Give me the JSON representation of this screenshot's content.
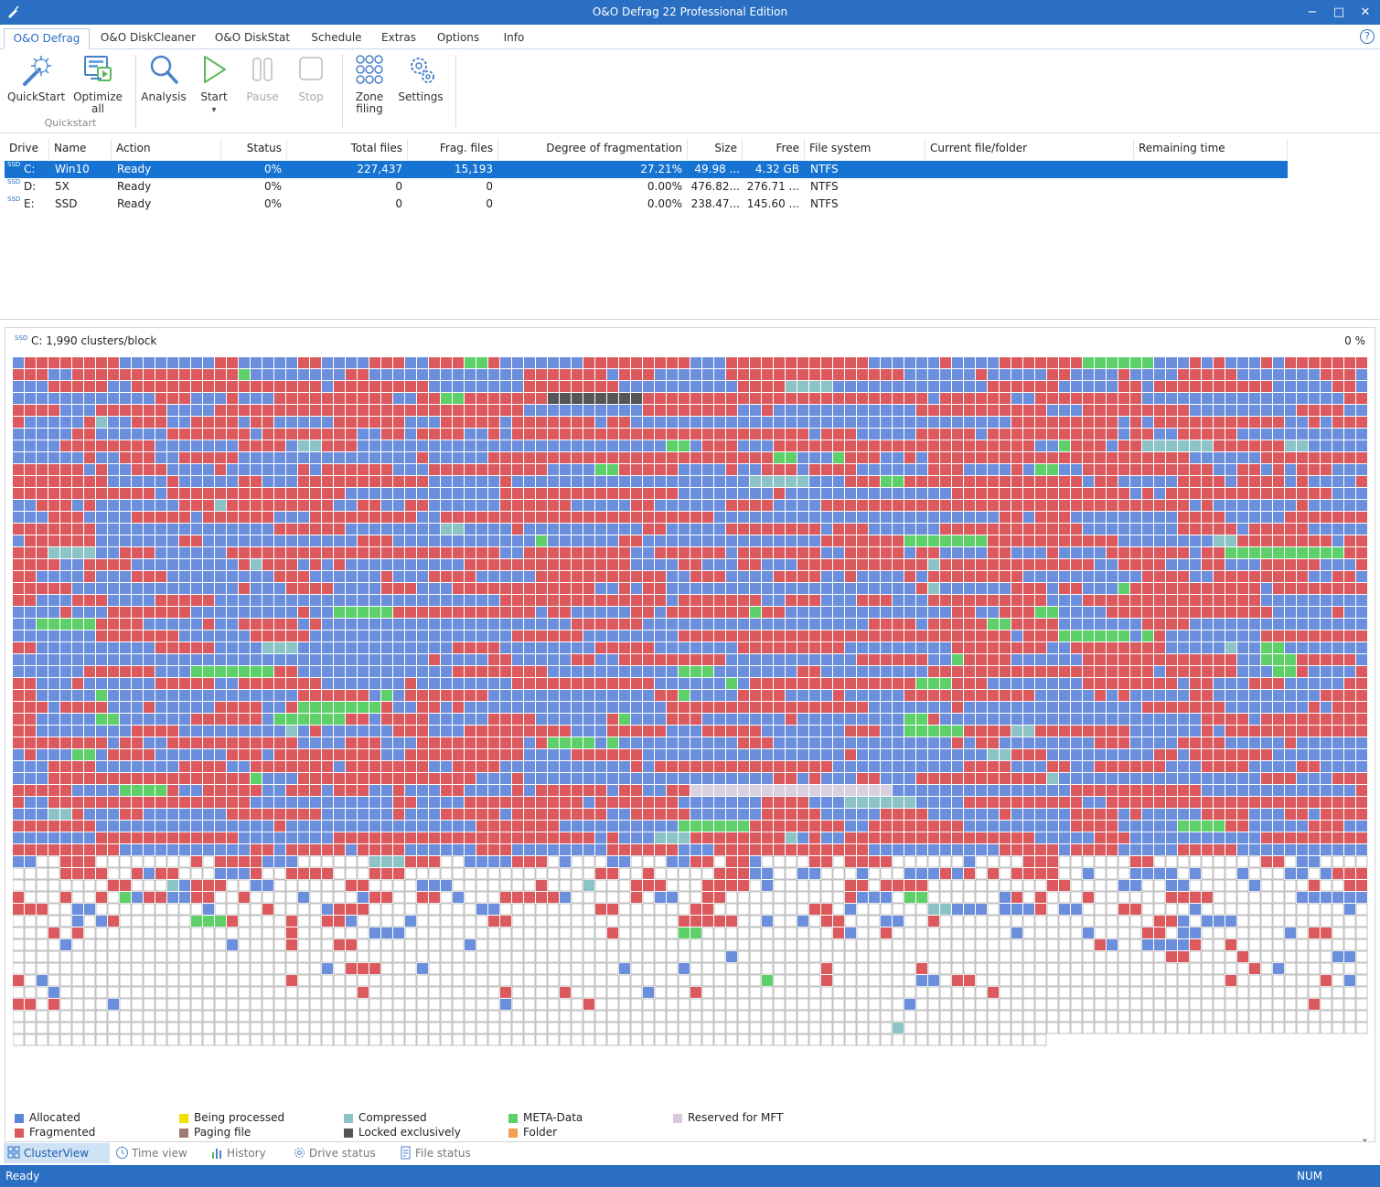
{
  "window": {
    "title": "O&O Defrag 22 Professional Edition",
    "minimize_glyph": "−",
    "maximize_glyph": "□",
    "close_glyph": "✕"
  },
  "menu": {
    "tabs": [
      "O&O Defrag",
      "O&O DiskCleaner",
      "O&O DiskStat",
      "Schedule",
      "Extras",
      "Options",
      "Info"
    ],
    "active_tab": "O&O Defrag",
    "help_glyph": "?"
  },
  "ribbon": {
    "quickstart": {
      "label": "QuickStart",
      "icon": "magic-wand-icon"
    },
    "optimize_all": {
      "label_line1": "Optimize",
      "label_line2": "all",
      "icon": "monitor-play-icon"
    },
    "quickstart_group_label": "Quickstart",
    "analysis": {
      "label": "Analysis",
      "icon": "magnifier-icon"
    },
    "start": {
      "label": "Start",
      "icon": "play-icon",
      "dropdown_glyph": "▾"
    },
    "pause": {
      "label": "Pause",
      "icon": "pause-icon",
      "disabled": true
    },
    "stop": {
      "label": "Stop",
      "icon": "stop-icon",
      "disabled": true
    },
    "zone_filing": {
      "label_line1": "Zone",
      "label_line2": "filing",
      "icon": "zone-grid-icon"
    },
    "settings": {
      "label": "Settings",
      "icon": "gears-icon"
    }
  },
  "drives": {
    "columns": [
      "Drive",
      "Name",
      "Action",
      "Status",
      "Total files",
      "Frag. files",
      "Degree of fragmentation",
      "Size",
      "Free",
      "File system",
      "Current file/folder",
      "Remaining time"
    ],
    "rows": [
      {
        "drive": "C:",
        "name": "Win10",
        "action": "Ready",
        "status": "0%",
        "total_files": "227,437",
        "frag_files": "15,193",
        "degree": "27.21%",
        "size": "49.98 ...",
        "free": "4.32 GB",
        "fs": "NTFS",
        "current": "",
        "remaining": "",
        "selected": true
      },
      {
        "drive": "D:",
        "name": "5X",
        "action": "Ready",
        "status": "0%",
        "total_files": "0",
        "frag_files": "0",
        "degree": "0.00%",
        "size": "476.82...",
        "free": "276.71 ...",
        "fs": "NTFS",
        "current": "",
        "remaining": "",
        "selected": false
      },
      {
        "drive": "E:",
        "name": "SSD",
        "action": "Ready",
        "status": "0%",
        "total_files": "0",
        "frag_files": "0",
        "degree": "0.00%",
        "size": "238.47...",
        "free": "145.60 ...",
        "fs": "NTFS",
        "current": "",
        "remaining": "",
        "selected": false
      }
    ],
    "ssd_badge": "SSD"
  },
  "cluster_map": {
    "header": "C: 1,990 clusters/block",
    "progress": "0 %",
    "colors": {
      "allocated": "#6b8fdc",
      "fragmented": "#dc5a5e",
      "free": "#ffffff",
      "meta": "#5dd06a",
      "compressed": "#8cc3c7",
      "locked": "#555555",
      "reserved_mft": "#d9d0e2"
    }
  },
  "legend": {
    "allocated": {
      "label": "Allocated",
      "color": "#5b86d8"
    },
    "fragmented": {
      "label": "Fragmented",
      "color": "#d9595c"
    },
    "being_processed": {
      "label": "Being processed",
      "color": "#f0e000"
    },
    "paging_file": {
      "label": "Paging file",
      "color": "#a07a70"
    },
    "compressed": {
      "label": "Compressed",
      "color": "#8cc3c7"
    },
    "locked": {
      "label": "Locked exclusively",
      "color": "#555555"
    },
    "meta": {
      "label": "META-Data",
      "color": "#5dd06a"
    },
    "folder": {
      "label": "Folder",
      "color": "#f0a050"
    },
    "reserved": {
      "label": "Reserved for MFT",
      "color": "#d9c8de"
    }
  },
  "view_tabs": [
    "ClusterView",
    "Time view",
    "History",
    "Drive status",
    "File status"
  ],
  "status": {
    "text": "Ready",
    "num": "NUM"
  }
}
